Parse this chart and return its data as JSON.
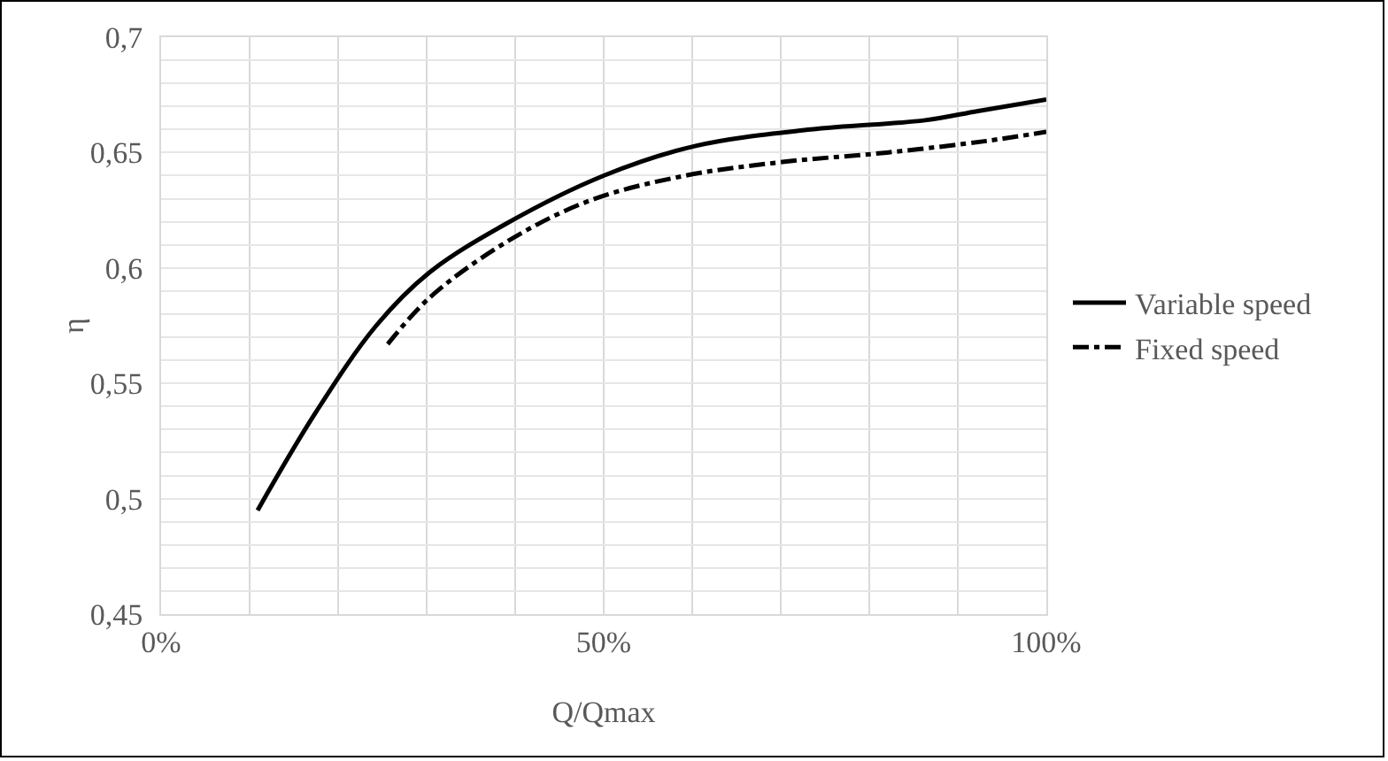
{
  "chart_data": {
    "type": "line",
    "xlabel": "Q/Qmax",
    "ylabel": "η",
    "legend": "right",
    "grid": true,
    "xlim": [
      0,
      100
    ],
    "xticks": [
      {
        "value": 0,
        "label": "0%"
      },
      {
        "value": 10,
        "label": null
      },
      {
        "value": 20,
        "label": null
      },
      {
        "value": 30,
        "label": null
      },
      {
        "value": 40,
        "label": null
      },
      {
        "value": 50,
        "label": "50%"
      },
      {
        "value": 60,
        "label": null
      },
      {
        "value": 70,
        "label": null
      },
      {
        "value": 80,
        "label": null
      },
      {
        "value": 90,
        "label": null
      },
      {
        "value": 100,
        "label": "100%"
      }
    ],
    "ylim": [
      0.45,
      0.7
    ],
    "yticks": [
      {
        "value": 0.45,
        "label": "0,45"
      },
      {
        "value": 0.46,
        "label": null
      },
      {
        "value": 0.47,
        "label": null
      },
      {
        "value": 0.48,
        "label": null
      },
      {
        "value": 0.49,
        "label": null
      },
      {
        "value": 0.5,
        "label": "0,5"
      },
      {
        "value": 0.51,
        "label": null
      },
      {
        "value": 0.52,
        "label": null
      },
      {
        "value": 0.53,
        "label": null
      },
      {
        "value": 0.54,
        "label": null
      },
      {
        "value": 0.55,
        "label": "0,55"
      },
      {
        "value": 0.56,
        "label": null
      },
      {
        "value": 0.57,
        "label": null
      },
      {
        "value": 0.58,
        "label": null
      },
      {
        "value": 0.59,
        "label": null
      },
      {
        "value": 0.6,
        "label": "0,6"
      },
      {
        "value": 0.61,
        "label": null
      },
      {
        "value": 0.62,
        "label": null
      },
      {
        "value": 0.63,
        "label": null
      },
      {
        "value": 0.64,
        "label": null
      },
      {
        "value": 0.65,
        "label": "0,65"
      },
      {
        "value": 0.66,
        "label": null
      },
      {
        "value": 0.67,
        "label": null
      },
      {
        "value": 0.68,
        "label": null
      },
      {
        "value": 0.69,
        "label": null
      },
      {
        "value": 0.7,
        "label": "0,7"
      }
    ],
    "series": [
      {
        "name": "Variable speed",
        "color": "#000000",
        "line_style": "solid",
        "x": [
          10.9,
          17.4,
          24.3,
          30.3,
          38.9,
          50,
          60.5,
          73.4,
          86.3,
          92.3,
          100
        ],
        "values": [
          0.495,
          0.537,
          0.575,
          0.598,
          0.619,
          0.64,
          0.653,
          0.66,
          0.664,
          0.668,
          0.673
        ]
      },
      {
        "name": "Fixed speed",
        "color": "#000000",
        "line_style": "dashdot",
        "x": [
          25.6,
          30.3,
          38.9,
          48.3,
          59.2,
          70.4,
          82.0,
          93.2,
          100
        ],
        "values": [
          0.567,
          0.587,
          0.611,
          0.629,
          0.64,
          0.646,
          0.65,
          0.655,
          0.659
        ]
      }
    ]
  }
}
